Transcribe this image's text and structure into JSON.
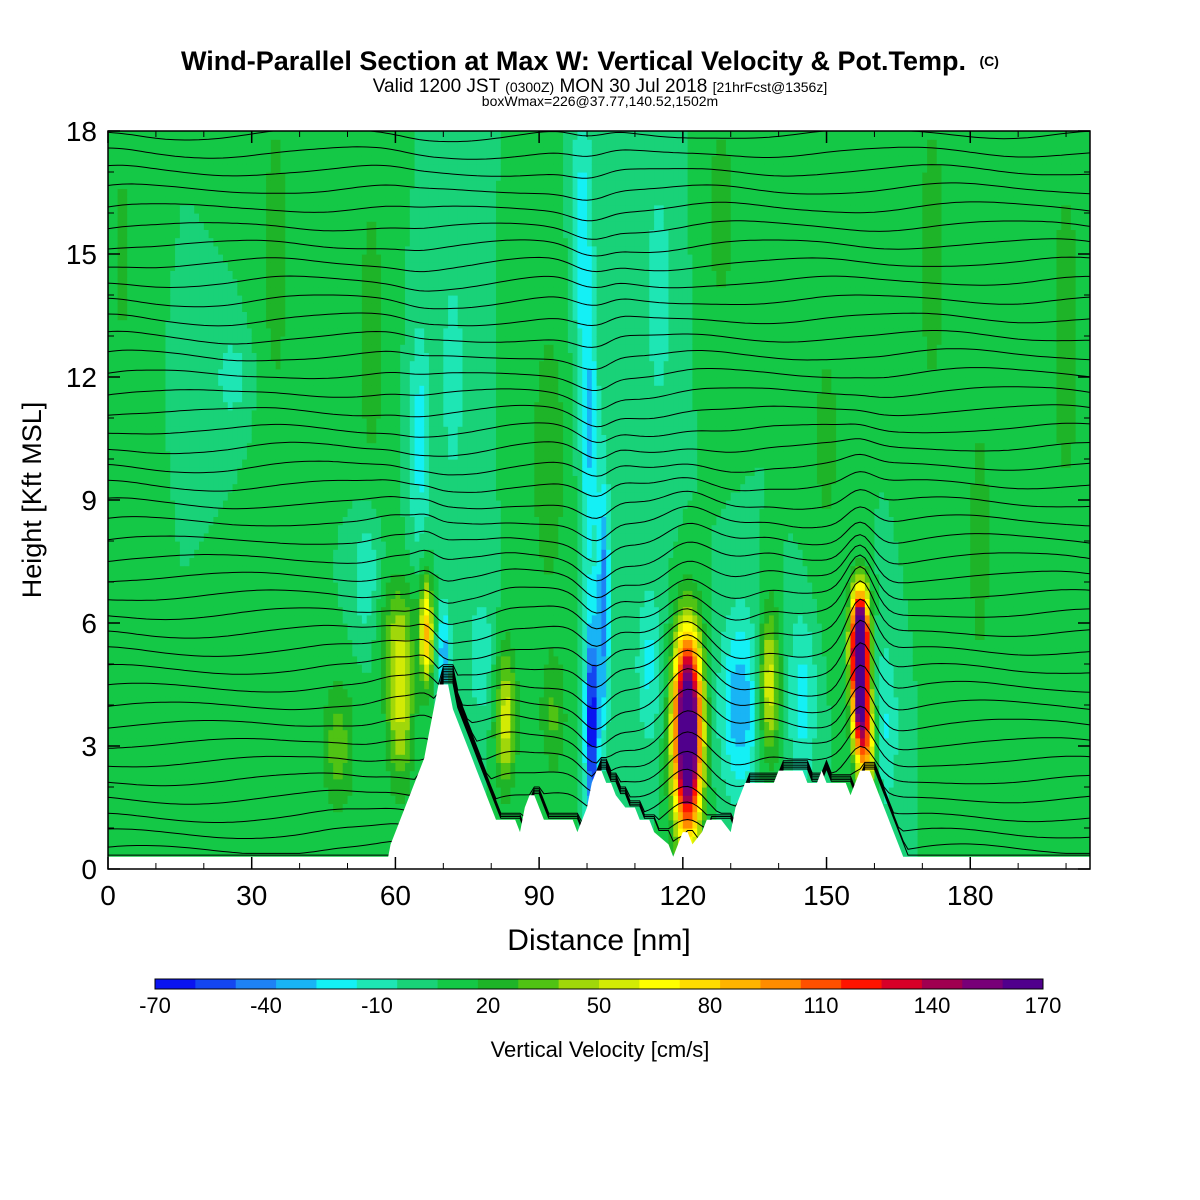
{
  "chart_data": {
    "type": "heatmap",
    "title": "Wind-Parallel Section at Max W: Vertical Velocity & Pot.Temp.",
    "title_tag": "(C)",
    "subtitle": {
      "prefix": "Valid 1200 JST",
      "utc": "(0300Z)",
      "date": "MON 30 Jul 2018",
      "forecast": "[21hrFcst@1356z]"
    },
    "info_line": "boxWmax=226@37.77,140.52,1502m",
    "xlabel": "Distance [nm]",
    "ylabel": "Height [Kft MSL]",
    "xlim": [
      0,
      205
    ],
    "ylim": [
      0,
      18
    ],
    "x_ticks": [
      0,
      30,
      60,
      90,
      120,
      150,
      180
    ],
    "y_ticks": [
      0,
      3,
      6,
      9,
      12,
      15,
      18
    ],
    "x_tick_labels": [
      "0",
      "30",
      "60",
      "90",
      "120",
      "150",
      "180"
    ],
    "y_tick_labels": [
      "0",
      "3",
      "6",
      "9",
      "12",
      "15",
      "18"
    ],
    "background_value": 0,
    "colorbar": {
      "label": "Vertical Velocity [cm/s]",
      "min": -70,
      "max": 170,
      "step": 10,
      "tick_values": [
        -70,
        -40,
        -10,
        20,
        50,
        80,
        110,
        140,
        170
      ],
      "tick_labels": [
        "-70",
        "-40",
        "-10",
        "20",
        "50",
        "80",
        "110",
        "140",
        "170"
      ],
      "colors": [
        "#0a14f0",
        "#1446f0",
        "#1e82f5",
        "#19b4f5",
        "#14f0f5",
        "#1ee6b4",
        "#19d278",
        "#14c846",
        "#1eb428",
        "#50c314",
        "#a0d70a",
        "#d2eb05",
        "#ffff00",
        "#ffdc00",
        "#ffb400",
        "#ff8c00",
        "#ff5000",
        "#ff1400",
        "#d70028",
        "#a00050",
        "#780078",
        "#50008c"
      ]
    },
    "terrain_top_kft": [
      [
        0,
        0.3
      ],
      [
        58.5,
        0.3
      ],
      [
        59,
        0.6
      ],
      [
        60,
        0.9
      ],
      [
        61,
        1.2
      ],
      [
        62,
        1.5
      ],
      [
        63,
        1.8
      ],
      [
        64,
        2.1
      ],
      [
        65,
        2.4
      ],
      [
        66,
        2.7
      ],
      [
        67,
        3.3
      ],
      [
        68,
        3.9
      ],
      [
        69,
        4.5
      ],
      [
        71,
        4.5
      ],
      [
        72,
        3.9
      ],
      [
        73,
        3.6
      ],
      [
        74,
        3.3
      ],
      [
        75,
        3.0
      ],
      [
        76,
        2.7
      ],
      [
        77,
        2.4
      ],
      [
        78,
        2.1
      ],
      [
        79,
        1.8
      ],
      [
        80,
        1.5
      ],
      [
        81,
        1.2
      ],
      [
        85,
        1.2
      ],
      [
        86,
        0.9
      ],
      [
        87,
        1.5
      ],
      [
        88,
        1.8
      ],
      [
        89,
        1.8
      ],
      [
        90,
        1.5
      ],
      [
        91,
        1.2
      ],
      [
        97,
        1.2
      ],
      [
        98,
        0.9
      ],
      [
        100,
        1.5
      ],
      [
        101,
        2.1
      ],
      [
        102,
        2.4
      ],
      [
        103,
        2.4
      ],
      [
        104,
        2.1
      ],
      [
        105,
        2.1
      ],
      [
        106,
        1.8
      ],
      [
        108,
        1.5
      ],
      [
        110,
        1.5
      ],
      [
        111,
        1.2
      ],
      [
        113,
        1.2
      ],
      [
        114,
        0.9
      ],
      [
        117,
        0.6
      ],
      [
        118,
        0.3
      ],
      [
        119,
        0.6
      ],
      [
        120,
        0.9
      ],
      [
        121,
        0.9
      ],
      [
        122,
        0.6
      ],
      [
        124,
        0.9
      ],
      [
        125,
        1.2
      ],
      [
        128,
        1.2
      ],
      [
        130,
        0.9
      ],
      [
        131,
        1.5
      ],
      [
        132,
        1.8
      ],
      [
        133,
        2.1
      ],
      [
        136,
        2.1
      ],
      [
        137,
        2.1
      ],
      [
        138,
        2.1
      ],
      [
        139,
        2.1
      ],
      [
        140,
        2.4
      ],
      [
        145,
        2.4
      ],
      [
        146,
        2.1
      ],
      [
        148,
        2.1
      ],
      [
        149,
        2.4
      ],
      [
        150,
        2.1
      ],
      [
        154,
        2.1
      ],
      [
        155,
        1.8
      ],
      [
        156,
        2.1
      ],
      [
        157,
        2.4
      ],
      [
        159,
        2.4
      ],
      [
        160,
        2.1
      ],
      [
        161,
        1.8
      ],
      [
        162,
        1.5
      ],
      [
        163,
        1.2
      ],
      [
        164,
        0.9
      ],
      [
        165,
        0.6
      ],
      [
        166,
        0.3
      ],
      [
        205,
        0.3
      ]
    ],
    "w_cells": [
      {
        "x": 121,
        "y": 4.0,
        "sx": 2.0,
        "sy": 1.4,
        "w": 145
      },
      {
        "x": 121,
        "y": 2.2,
        "sx": 2.0,
        "sy": 1.3,
        "w": 95
      },
      {
        "x": 157,
        "y": 4.6,
        "sx": 1.2,
        "sy": 1.1,
        "w": 170
      },
      {
        "x": 157,
        "y": 5.8,
        "sx": 1.3,
        "sy": 0.8,
        "w": 110
      },
      {
        "x": 158.5,
        "y": 3.0,
        "sx": 1.4,
        "sy": 0.9,
        "w": 70
      },
      {
        "x": 61,
        "y": 4.2,
        "sx": 2.0,
        "sy": 1.5,
        "w": 45
      },
      {
        "x": 66.5,
        "y": 5.8,
        "sx": 1.0,
        "sy": 0.9,
        "w": 70
      },
      {
        "x": 138,
        "y": 4.5,
        "sx": 1.6,
        "sy": 1.3,
        "w": 50
      },
      {
        "x": 83,
        "y": 3.7,
        "sx": 1.6,
        "sy": 1.2,
        "w": 45
      },
      {
        "x": 48,
        "y": 3.0,
        "sx": 2.5,
        "sy": 1.2,
        "w": 25
      },
      {
        "x": 93,
        "y": 3.7,
        "sx": 2.0,
        "sy": 1.0,
        "w": 20
      },
      {
        "x": 101,
        "y": 3.5,
        "sx": 1.0,
        "sy": 1.8,
        "w": -70
      },
      {
        "x": 103.5,
        "y": 6.5,
        "sx": 0.9,
        "sy": 2.2,
        "w": -45
      },
      {
        "x": 100.5,
        "y": 10.5,
        "sx": 1.3,
        "sy": 2.5,
        "w": -30
      },
      {
        "x": 99,
        "y": 15.5,
        "sx": 1.5,
        "sy": 2.5,
        "w": -25
      },
      {
        "x": 132,
        "y": 4.0,
        "sx": 3.0,
        "sy": 1.6,
        "w": -38
      },
      {
        "x": 145,
        "y": 4.2,
        "sx": 2.2,
        "sy": 1.5,
        "w": -25
      },
      {
        "x": 113,
        "y": 5.0,
        "sx": 2.0,
        "sy": 1.4,
        "w": -22
      },
      {
        "x": 162,
        "y": 3.5,
        "sx": 2.2,
        "sy": 1.5,
        "w": -22
      },
      {
        "x": 70,
        "y": 5.3,
        "sx": 1.0,
        "sy": 0.8,
        "w": -35
      },
      {
        "x": 65,
        "y": 10.5,
        "sx": 1.6,
        "sy": 2.0,
        "w": -25
      },
      {
        "x": 54,
        "y": 7.2,
        "sx": 2.2,
        "sy": 1.2,
        "w": -22
      },
      {
        "x": 78,
        "y": 5.2,
        "sx": 2.0,
        "sy": 1.2,
        "w": -18
      },
      {
        "x": 26,
        "y": 12.0,
        "sx": 3.0,
        "sy": 0.8,
        "w": -15
      },
      {
        "x": 115,
        "y": 14.0,
        "sx": 3.0,
        "sy": 3.0,
        "w": -13
      },
      {
        "x": 72,
        "y": 12.0,
        "sx": 2.5,
        "sy": 3.0,
        "w": -13
      },
      {
        "x": 92,
        "y": 10.0,
        "sx": 3.0,
        "sy": 3.0,
        "w": 16
      },
      {
        "x": 35,
        "y": 15.0,
        "sx": 3.0,
        "sy": 4.0,
        "w": 13
      },
      {
        "x": 55,
        "y": 13.0,
        "sx": 3.0,
        "sy": 4.0,
        "w": 13
      },
      {
        "x": 172,
        "y": 15.0,
        "sx": 3.0,
        "sy": 4.0,
        "w": 13
      },
      {
        "x": 182,
        "y": 8.0,
        "sx": 3.0,
        "sy": 4.0,
        "w": 12
      },
      {
        "x": 200,
        "y": 13.0,
        "sx": 3.0,
        "sy": 4.0,
        "w": 14
      },
      {
        "x": 3,
        "y": 15.0,
        "sx": 2.0,
        "sy": 3.0,
        "w": 12
      },
      {
        "x": 128,
        "y": 16.0,
        "sx": 3.0,
        "sy": 2.5,
        "w": 13
      },
      {
        "x": 150,
        "y": 10.5,
        "sx": 3.0,
        "sy": 3.0,
        "w": 12
      },
      {
        "x": 60,
        "y": 6.0,
        "sx": 3.0,
        "sy": 0.8,
        "w": 14
      }
    ],
    "theta_contour_base_heights_kft": [
      0.15,
      0.45,
      0.85,
      1.25,
      1.7,
      2.15,
      2.6,
      3.05,
      3.5,
      3.95,
      4.4,
      4.85,
      5.3,
      5.75,
      6.2,
      6.65,
      7.1,
      7.55,
      8.0,
      8.45,
      8.9,
      9.35,
      9.8,
      10.25,
      10.7,
      11.15,
      11.6,
      12.05,
      12.5,
      12.95,
      13.4,
      13.85,
      14.3,
      14.75,
      15.2,
      15.65,
      16.1,
      16.55,
      17.0,
      17.45,
      17.9
    ]
  }
}
